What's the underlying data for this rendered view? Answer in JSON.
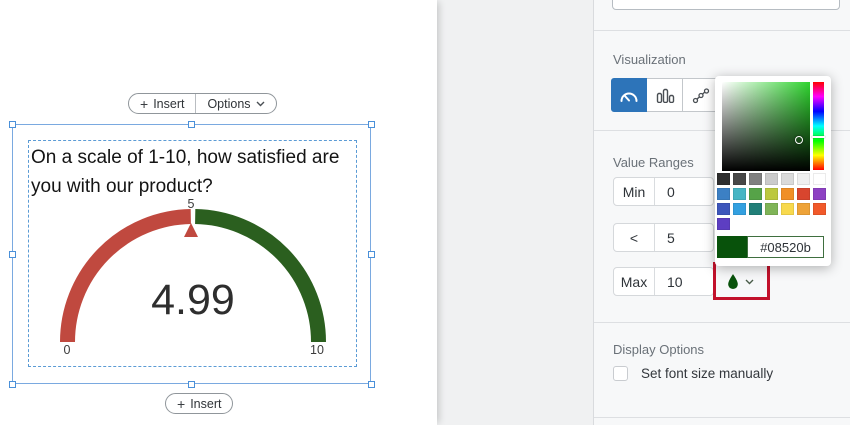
{
  "canvas": {
    "top_toolbar": {
      "insert_label": "Insert",
      "options_label": "Options"
    },
    "bottom_toolbar": {
      "insert_label": "Insert"
    },
    "widget": {
      "title": "On a scale of 1-10, how satisfied are you with our product?",
      "gauge": {
        "value_display": "4.99",
        "min_label": "0",
        "mid_label": "5",
        "max_label": "10",
        "low_color": "#c0493f",
        "high_color": "#2b5f1f",
        "pointer_color": "#c0493f"
      }
    }
  },
  "panel": {
    "visualization": {
      "label": "Visualization",
      "selected": "gauge",
      "selected_color": "#2d74b9"
    },
    "value_ranges": {
      "label": "Value Ranges",
      "rows": [
        {
          "label": "Min",
          "value": "0"
        },
        {
          "label": "<",
          "value": "5"
        },
        {
          "label": "Max",
          "value": "10"
        }
      ]
    },
    "color_picker": {
      "hex_value": "#08520b",
      "selected_color": "#08520b",
      "swatch_rows": [
        [
          "#2e2e2e",
          "#474747",
          "#808080",
          "#cbcbcb",
          "#dadada",
          "#efefef",
          "#ffffff"
        ],
        [
          "#3c80c4",
          "#47b5c4",
          "#56a348",
          "#bcc83f",
          "#f08f26",
          "#d8452e",
          "#8d41c3"
        ],
        [
          "#3d56bb",
          "#33a0e0",
          "#217f78",
          "#7fb457",
          "#f8d94d",
          "#eea338",
          "#f1592a"
        ],
        [
          "#5d3ec2"
        ]
      ]
    },
    "display_options": {
      "label": "Display Options",
      "checkbox_label": "Set font size manually",
      "checked": false
    },
    "annotation_color": "#c2112b"
  }
}
